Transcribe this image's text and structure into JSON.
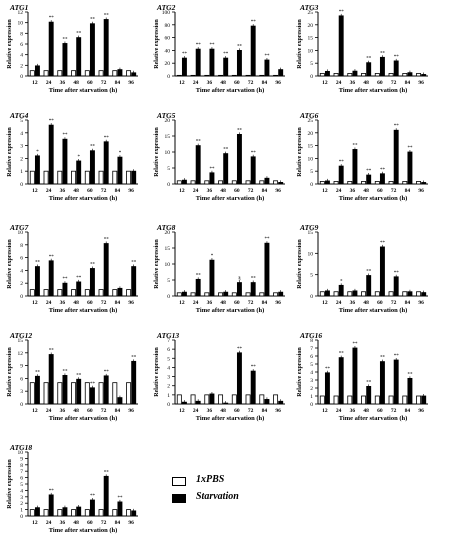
{
  "figure": {
    "x_axis_label": "Time after starvation  (h)",
    "y_axis_label": "Relative expression"
  },
  "legend": {
    "items": [
      {
        "label": "1xPBS",
        "color": "#ffffff"
      },
      {
        "label": "Starvation",
        "color": "#000000"
      }
    ]
  },
  "chart_data": [
    {
      "type": "bar",
      "title": "ATG1",
      "categories": [
        "12",
        "24",
        "36",
        "48",
        "60",
        "72",
        "84",
        "96"
      ],
      "ylim": [
        0,
        12
      ],
      "yticks": [
        0,
        2,
        4,
        6,
        8,
        10,
        12
      ],
      "series": [
        {
          "name": "1xPBS",
          "values": [
            1,
            1,
            1,
            1,
            1,
            1,
            1,
            1
          ]
        },
        {
          "name": "Starvation",
          "values": [
            1.9,
            10.1,
            6.1,
            7.2,
            9.8,
            10.6,
            1.2,
            0.6
          ]
        }
      ],
      "annotations": [
        "",
        "**",
        "**",
        "**",
        "**",
        "**",
        "",
        ""
      ]
    },
    {
      "type": "bar",
      "title": "ATG2",
      "categories": [
        "12",
        "24",
        "36",
        "48",
        "60",
        "72",
        "84",
        "96"
      ],
      "ylim": [
        0,
        100
      ],
      "yticks": [
        0,
        20,
        40,
        60,
        80,
        100
      ],
      "series": [
        {
          "name": "1xPBS",
          "values": [
            1,
            1,
            1,
            1,
            1,
            1,
            1,
            1
          ]
        },
        {
          "name": "Starvation",
          "values": [
            28,
            42,
            42,
            28,
            40,
            78,
            25,
            10
          ]
        }
      ],
      "annotations": [
        "**",
        "**",
        "**",
        "**",
        "**",
        "**",
        "**",
        ""
      ]
    },
    {
      "type": "bar",
      "title": "ATG3",
      "categories": [
        "12",
        "24",
        "36",
        "48",
        "60",
        "72",
        "84",
        "96"
      ],
      "ylim": [
        0,
        25
      ],
      "yticks": [
        0,
        5,
        10,
        15,
        20,
        25
      ],
      "series": [
        {
          "name": "1xPBS",
          "values": [
            1,
            1,
            1,
            1,
            1,
            1,
            1,
            1
          ]
        },
        {
          "name": "Starvation",
          "values": [
            1.8,
            23.5,
            1.9,
            5.2,
            7.3,
            5.9,
            1.3,
            0.6
          ]
        }
      ],
      "annotations": [
        "",
        "**",
        "",
        "**",
        "**",
        "**",
        "",
        ""
      ]
    },
    {
      "type": "bar",
      "title": "ATG4",
      "categories": [
        "12",
        "24",
        "36",
        "48",
        "60",
        "72",
        "84",
        "96"
      ],
      "ylim": [
        0,
        5
      ],
      "yticks": [
        0,
        1,
        2,
        3,
        4,
        5
      ],
      "series": [
        {
          "name": "1xPBS",
          "values": [
            1,
            1,
            1,
            1,
            1,
            1,
            1,
            1
          ]
        },
        {
          "name": "Starvation",
          "values": [
            2.2,
            4.6,
            3.5,
            1.8,
            2.6,
            3.3,
            2.1,
            1
          ]
        }
      ],
      "annotations": [
        "*",
        "**",
        "**",
        "*",
        "**",
        "**",
        "*",
        ""
      ]
    },
    {
      "type": "bar",
      "title": "ATG5",
      "categories": [
        "12",
        "24",
        "36",
        "48",
        "60",
        "72",
        "84",
        "96"
      ],
      "ylim": [
        0,
        20
      ],
      "yticks": [
        0,
        5,
        10,
        15,
        20
      ],
      "series": [
        {
          "name": "1xPBS",
          "values": [
            1,
            1,
            1,
            1,
            1,
            1,
            1,
            1
          ]
        },
        {
          "name": "Starvation",
          "values": [
            1.2,
            12,
            3.5,
            9.5,
            15.5,
            8.5,
            1.8,
            0.5
          ]
        }
      ],
      "annotations": [
        "",
        "**",
        "**",
        "**",
        "**",
        "**",
        "",
        ""
      ]
    },
    {
      "type": "bar",
      "title": "ATG6",
      "categories": [
        "12",
        "24",
        "36",
        "48",
        "60",
        "72",
        "84",
        "96"
      ],
      "ylim": [
        0,
        25
      ],
      "yticks": [
        0,
        5,
        10,
        15,
        20,
        25
      ],
      "series": [
        {
          "name": "1xPBS",
          "values": [
            1,
            1,
            1,
            1,
            1,
            1,
            1,
            1
          ]
        },
        {
          "name": "Starvation",
          "values": [
            1.2,
            7,
            13.5,
            3.5,
            4,
            21,
            12.5,
            0.6
          ]
        }
      ],
      "annotations": [
        "",
        "**",
        "**",
        "**",
        "**",
        "**",
        "**",
        ""
      ]
    },
    {
      "type": "bar",
      "title": "ATG7",
      "categories": [
        "12",
        "24",
        "36",
        "48",
        "60",
        "72",
        "84",
        "96"
      ],
      "ylim": [
        0,
        10
      ],
      "yticks": [
        0,
        2,
        4,
        6,
        8,
        10
      ],
      "series": [
        {
          "name": "1xPBS",
          "values": [
            1,
            1,
            1,
            1,
            1,
            1,
            1,
            1
          ]
        },
        {
          "name": "Starvation",
          "values": [
            4.6,
            5.5,
            2,
            2.2,
            4.3,
            8.2,
            1.2,
            4.6
          ]
        }
      ],
      "annotations": [
        "**",
        "**",
        "**",
        "**",
        "**",
        "**",
        "",
        "**"
      ]
    },
    {
      "type": "bar",
      "title": "ATG8",
      "categories": [
        "12",
        "24",
        "36",
        "48",
        "60",
        "72",
        "84",
        "96"
      ],
      "ylim": [
        0,
        20
      ],
      "yticks": [
        0,
        5,
        10,
        15,
        20
      ],
      "series": [
        {
          "name": "1xPBS",
          "values": [
            1,
            1,
            1,
            1,
            1,
            1,
            1,
            1
          ]
        },
        {
          "name": "Starvation",
          "values": [
            1.2,
            5.2,
            11.2,
            1.2,
            4.2,
            4.2,
            16.5,
            1.2
          ]
        }
      ],
      "annotations": [
        "",
        "**",
        "*",
        "",
        "§",
        "**",
        "**",
        ""
      ]
    },
    {
      "type": "bar",
      "title": "ATG9",
      "categories": [
        "12",
        "24",
        "36",
        "48",
        "60",
        "72",
        "84",
        "96"
      ],
      "ylim": [
        0,
        15
      ],
      "yticks": [
        0,
        5,
        10,
        15
      ],
      "series": [
        {
          "name": "1xPBS",
          "values": [
            1,
            1,
            1,
            1,
            1,
            1,
            1,
            1
          ]
        },
        {
          "name": "Starvation",
          "values": [
            1.2,
            2.5,
            1.2,
            4.8,
            11.5,
            4.5,
            1,
            0.8
          ]
        }
      ],
      "annotations": [
        "",
        "*",
        "",
        "**",
        "**",
        "**",
        "",
        ""
      ]
    },
    {
      "type": "bar",
      "title": "ATG12",
      "categories": [
        "12",
        "24",
        "36",
        "48",
        "60",
        "72",
        "84",
        "96"
      ],
      "ylim": [
        0,
        15
      ],
      "yticks": [
        0,
        3,
        6,
        9,
        12,
        15
      ],
      "series": [
        {
          "name": "1xPBS",
          "values": [
            5,
            5,
            5,
            5,
            5,
            5,
            5,
            5
          ]
        },
        {
          "name": "Starvation",
          "values": [
            6.5,
            11.6,
            6.7,
            5.8,
            3.8,
            6.6,
            1.5,
            10
          ]
        }
      ],
      "annotations": [
        "**",
        "**",
        "**",
        "**",
        "**",
        "**",
        "",
        "**"
      ]
    },
    {
      "type": "bar",
      "title": "ATG13",
      "categories": [
        "12",
        "24",
        "36",
        "48",
        "60",
        "72",
        "84",
        "96"
      ],
      "ylim": [
        0,
        7
      ],
      "yticks": [
        0,
        1,
        2,
        3,
        4,
        5,
        6,
        7
      ],
      "series": [
        {
          "name": "1xPBS",
          "values": [
            1,
            1,
            1,
            1,
            1,
            1,
            1,
            1
          ]
        },
        {
          "name": "Starvation",
          "values": [
            0.2,
            0.3,
            1.1,
            0.1,
            5.6,
            3.6,
            0.5,
            0.3
          ]
        }
      ],
      "annotations": [
        "",
        "",
        "",
        "",
        "**",
        "**",
        "",
        ""
      ]
    },
    {
      "type": "bar",
      "title": "ATG16",
      "categories": [
        "12",
        "24",
        "36",
        "48",
        "60",
        "72",
        "84",
        "96"
      ],
      "ylim": [
        0,
        8
      ],
      "yticks": [
        0,
        1,
        2,
        3,
        4,
        5,
        6,
        7,
        8
      ],
      "series": [
        {
          "name": "1xPBS",
          "values": [
            1,
            1,
            1,
            1,
            1,
            1,
            1,
            1
          ]
        },
        {
          "name": "Starvation",
          "values": [
            3.9,
            5.8,
            7,
            2.2,
            5.3,
            5.5,
            3.2,
            1
          ]
        }
      ],
      "annotations": [
        "**",
        "**",
        "**",
        "**",
        "**",
        "**",
        "**",
        ""
      ]
    },
    {
      "type": "bar",
      "title": "ATG18",
      "categories": [
        "12",
        "24",
        "36",
        "48",
        "60",
        "72",
        "84",
        "96"
      ],
      "ylim": [
        0,
        10
      ],
      "yticks": [
        0,
        1,
        2,
        3,
        4,
        5,
        6,
        7,
        8,
        9,
        10
      ],
      "series": [
        {
          "name": "1xPBS",
          "values": [
            1,
            1,
            1,
            1,
            1,
            1,
            1,
            1
          ]
        },
        {
          "name": "Starvation",
          "values": [
            1.3,
            3.3,
            1.3,
            1.4,
            2.5,
            6.2,
            2.2,
            0.8
          ]
        }
      ],
      "annotations": [
        "",
        "**",
        "",
        "",
        "**",
        "**",
        "**",
        ""
      ]
    }
  ]
}
